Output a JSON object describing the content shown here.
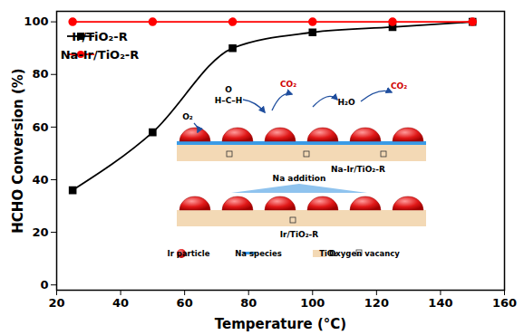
{
  "chart_data": {
    "type": "line",
    "x_label": "Temperature (°C)",
    "y_label": "HCHO Conversion (%)",
    "x": [
      25,
      50,
      75,
      100,
      125,
      150
    ],
    "series": [
      {
        "name": "Ir/TiO₂-R",
        "color": "#000000",
        "marker": "square",
        "line_style": "solid",
        "values": [
          36,
          58,
          90,
          96,
          98,
          100
        ]
      },
      {
        "name": "Na-Ir/TiO₂-R",
        "color": "#ff0000",
        "marker": "circle",
        "line_style": "solid",
        "values": [
          100,
          100,
          100,
          100,
          100,
          100
        ]
      }
    ],
    "xlim": [
      20,
      160
    ],
    "xticks": [
      20,
      40,
      60,
      80,
      100,
      120,
      140,
      160
    ],
    "ylim": [
      -2,
      104
    ],
    "yticks": [
      0,
      20,
      40,
      60,
      80,
      100
    ],
    "legend": "top-left",
    "grid": false,
    "annotations": {
      "top_label": "Na-Ir/TiO₂-R",
      "arrow_label": "Na addition",
      "bottom_label": "Ir/TiO₂-R",
      "species": [
        "O₂",
        "O",
        "H–C–H",
        "CO₂",
        "H₂O",
        "CO₂"
      ],
      "key": [
        "Ir particle",
        "Na species",
        "TiO₂",
        "Oxygen vacancy"
      ]
    }
  }
}
